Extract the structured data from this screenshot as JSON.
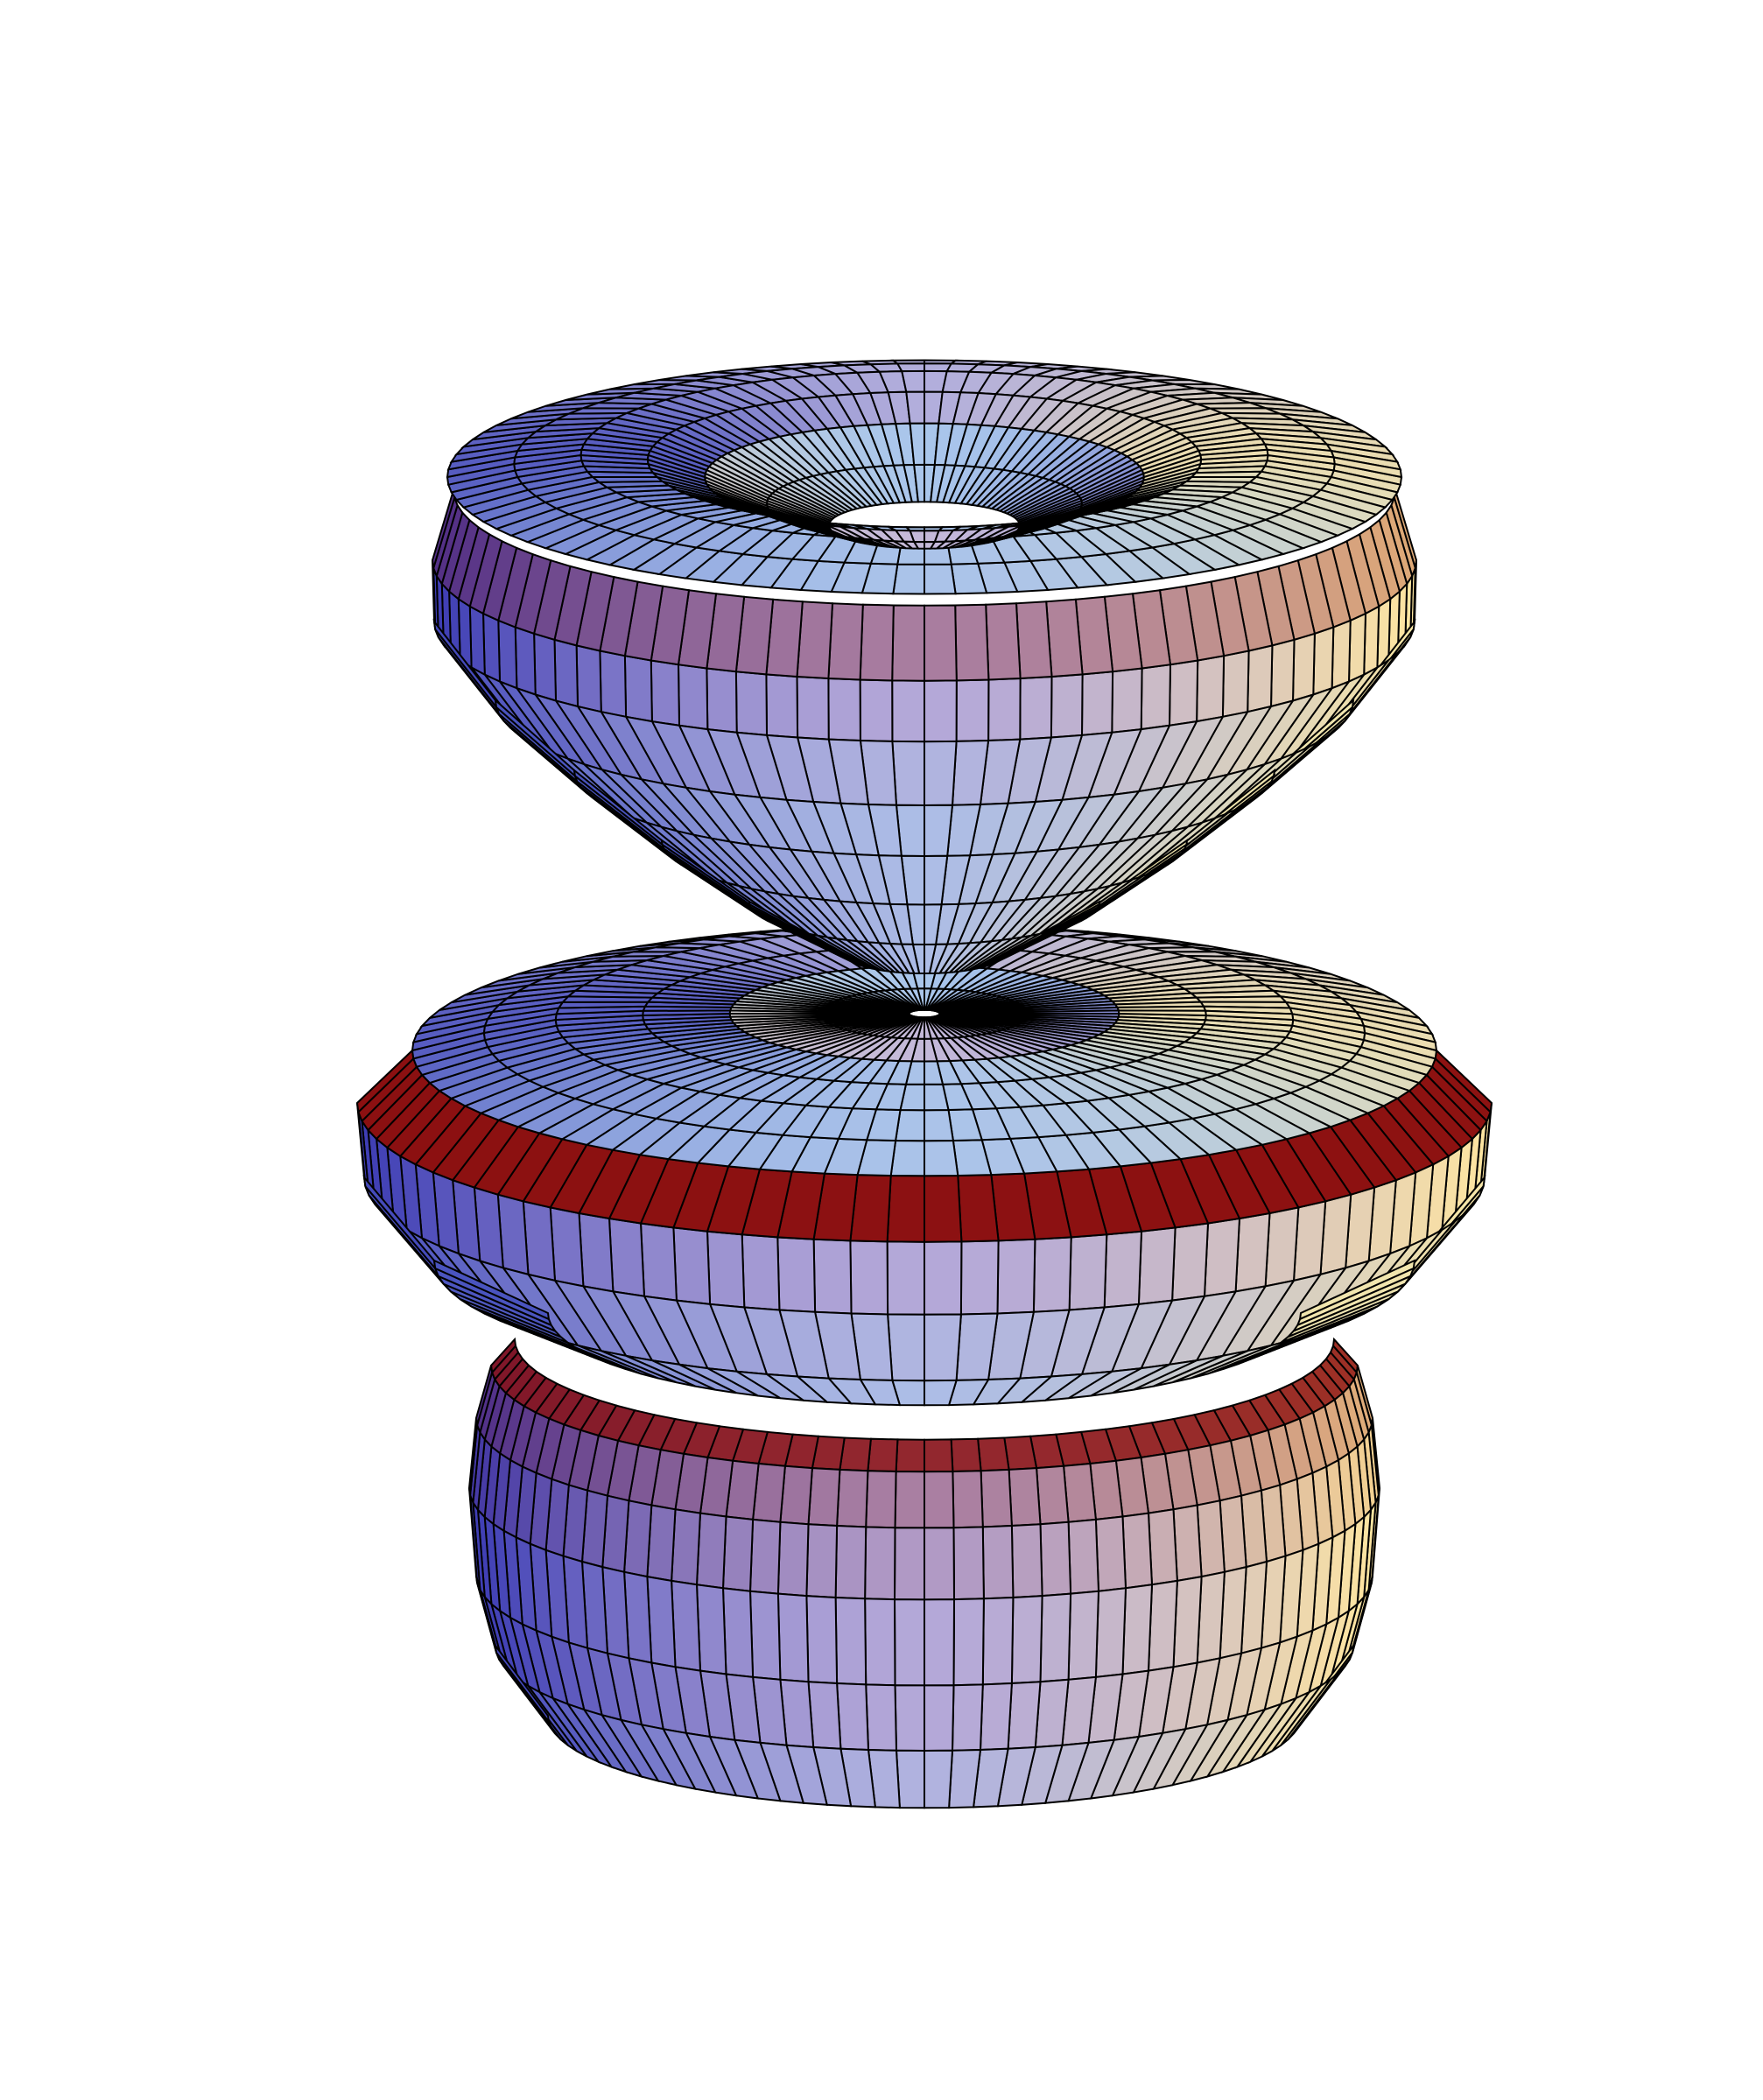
{
  "figure": {
    "type": "surface-of-revolution",
    "mesh_lines": true,
    "lighting_colors": {
      "left": "#3c3cb4",
      "center": "#b4a8d8",
      "right": "#ffe6a0",
      "underside": "#8c1010",
      "top_highlight": "#9fe4ff",
      "mesh_line": "#000000",
      "background": "#ffffff"
    },
    "meridian_count": 96,
    "lobes": [
      {
        "name": "top-bowl"
      },
      {
        "name": "middle-disc"
      },
      {
        "name": "bottom-bulb"
      }
    ]
  }
}
